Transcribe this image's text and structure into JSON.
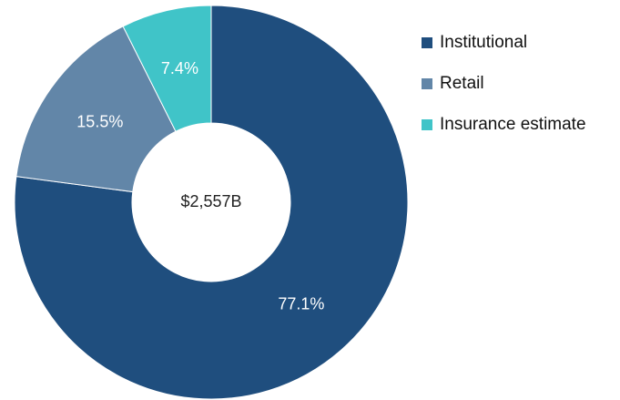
{
  "chart_data": {
    "type": "donut",
    "categories": [
      "Institutional",
      "Retail",
      "Insurance estimate"
    ],
    "values": [
      77.1,
      15.5,
      7.4
    ],
    "value_labels": [
      "77.1%",
      "15.5%",
      "7.4%"
    ],
    "colors": [
      "#1f4e7e",
      "#6286a8",
      "#40c4c8"
    ],
    "center_label": "$2,557B",
    "legend": "right"
  }
}
